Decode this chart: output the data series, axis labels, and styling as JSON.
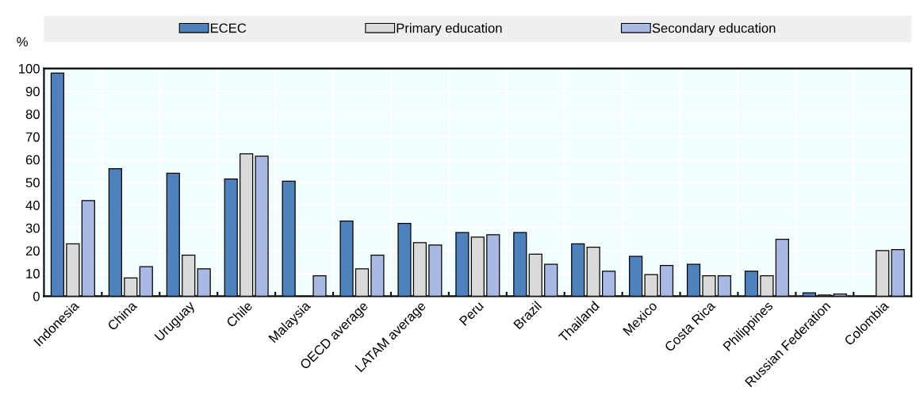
{
  "chart_data": {
    "type": "bar",
    "ylabel": "%",
    "categories": [
      "Indonesia",
      "China",
      "Uruguay",
      "Chile",
      "Malaysia",
      "OECD average",
      "LATAM average",
      "Peru",
      "Brazil",
      "Thailand",
      "Mexico",
      "Costa Rica",
      "Philippines",
      "Russian Federation",
      "Colombia"
    ],
    "series": [
      {
        "name": "ECEC",
        "color": "#4f81bd",
        "values": [
          98,
          56,
          54,
          51.5,
          50.5,
          33,
          32,
          28,
          28,
          23,
          17.5,
          14,
          11,
          1.5,
          null
        ]
      },
      {
        "name": "Primary education",
        "color": "#dadada",
        "values": [
          23,
          8,
          18,
          62.5,
          null,
          12,
          23.5,
          26,
          18.5,
          21.5,
          9.5,
          9,
          9,
          0.5,
          20
        ]
      },
      {
        "name": "Secondary education",
        "color": "#a9b9e3",
        "values": [
          42,
          13,
          12,
          61.5,
          9,
          18,
          22.5,
          27,
          14,
          11,
          13.5,
          9,
          25,
          1,
          20.5
        ]
      }
    ],
    "ylim": [
      0,
      100
    ],
    "yticks": [
      0,
      10,
      20,
      30,
      40,
      50,
      60,
      70,
      80,
      90,
      100
    ],
    "grid": true,
    "legend": "top"
  }
}
